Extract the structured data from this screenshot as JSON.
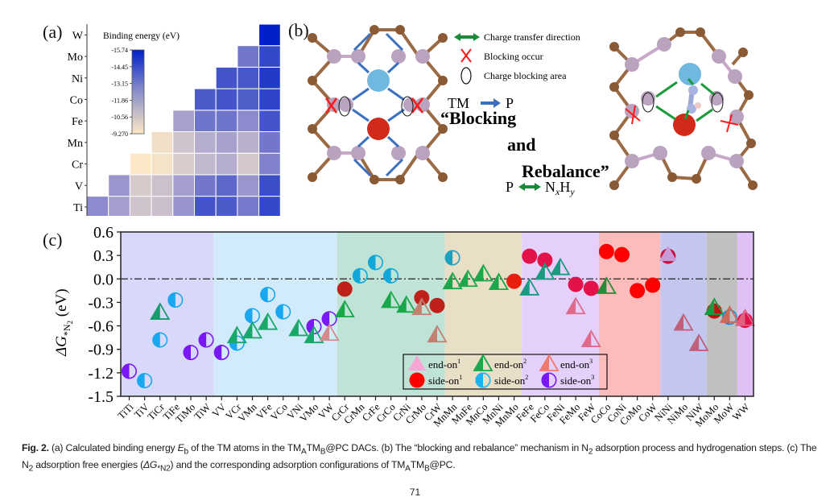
{
  "panel_labels": {
    "a": "(a)",
    "b": "(b)",
    "c": "(c)"
  },
  "chart_data": [
    {
      "type": "heatmap",
      "panel": "(a)",
      "title": "Binding energy (eV)",
      "x_labels": [
        "Ti",
        "V",
        "Cr",
        "Mn",
        "Fe",
        "Co",
        "Ni",
        "Mo",
        "W"
      ],
      "y_labels": [
        "Ti",
        "V",
        "Cr",
        "Mn",
        "Fe",
        "Co",
        "Ni",
        "Mo",
        "W"
      ],
      "colorbar": {
        "ticks": [
          "-15.74",
          "-14.45",
          "-13.15",
          "-11.86",
          "-10.56",
          "-9.270"
        ],
        "min": -15.74,
        "max": -9.27,
        "colors": [
          "#001fc8",
          "#fde9c6"
        ]
      },
      "note": "lower-triangular matrix, cell (row=y, col=x) defined when col >= row",
      "values": [
        [
          -12.9,
          -12.4,
          -11.2,
          -11.5,
          -12.7,
          -14.6,
          -14.4,
          -13.4,
          -14.9
        ],
        [
          null,
          -12.6,
          -10.9,
          -11.4,
          -12.4,
          -13.5,
          -14.0,
          -12.6,
          -14.8
        ],
        [
          null,
          null,
          -9.3,
          -9.6,
          -10.8,
          -11.7,
          -12.0,
          -11.0,
          -13.2
        ],
        [
          null,
          null,
          null,
          -9.8,
          -11.2,
          -12.0,
          -12.3,
          -11.9,
          -13.5
        ],
        [
          null,
          null,
          null,
          null,
          -12.3,
          -13.6,
          -13.6,
          -12.9,
          -14.6
        ],
        [
          null,
          null,
          null,
          null,
          null,
          -14.4,
          -14.6,
          -14.3,
          -15.0
        ],
        [
          null,
          null,
          null,
          null,
          null,
          null,
          -14.6,
          -14.5,
          -15.2
        ],
        [
          null,
          null,
          null,
          null,
          null,
          null,
          null,
          -13.5,
          -14.9
        ],
        [
          null,
          null,
          null,
          null,
          null,
          null,
          null,
          null,
          -15.74
        ]
      ]
    },
    {
      "type": "scatter",
      "panel": "(c)",
      "ylabel": "ΔG*N2 (eV)",
      "ylabel_parts": {
        "prefix": "ΔG",
        "sub": "*N",
        "sub2": "2",
        "suffix": " (eV)"
      },
      "xlabel": "",
      "ylim": [
        -1.5,
        0.6
      ],
      "yticks": [
        "0.6",
        "0.3",
        "0.0",
        "-0.3",
        "-0.6",
        "-0.9",
        "-1.2",
        "-1.5"
      ],
      "reference_line": 0.0,
      "categories": [
        "TiTi",
        "TiV",
        "TiCr",
        "TiFe",
        "TiMo",
        "TiW",
        "VV",
        "VCr",
        "VMn",
        "VFe",
        "VCo",
        "VNi",
        "VMo",
        "VW",
        "CrCr",
        "CrMn",
        "CrFe",
        "CrCo",
        "CrNi",
        "CrMo",
        "CrW",
        "MnMn",
        "MnFe",
        "MnCo",
        "MnNi",
        "MnMo",
        "FeFe",
        "FeCo",
        "FeNi",
        "FeMo",
        "FeW",
        "CoCo",
        "CoNi",
        "CoMo",
        "CoW",
        "NiNi",
        "NiMo",
        "NiW",
        "MoMo",
        "MoW",
        "WW"
      ],
      "bands": [
        {
          "group": "Ti",
          "from": 0,
          "to": 5,
          "color": "#d7d8fa"
        },
        {
          "group": "V",
          "from": 6,
          "to": 13,
          "color": "#d2ebfb"
        },
        {
          "group": "Cr",
          "from": 14,
          "to": 20,
          "color": "#c0e3d8"
        },
        {
          "group": "Mn",
          "from": 21,
          "to": 25,
          "color": "#e9dec6"
        },
        {
          "group": "Fe",
          "from": 26,
          "to": 30,
          "color": "#e5d0fb"
        },
        {
          "group": "Co",
          "from": 31,
          "to": 34,
          "color": "#fdbcbc"
        },
        {
          "group": "Ni",
          "from": 35,
          "to": 37,
          "color": "#c3c6ee"
        },
        {
          "group": "Mo",
          "from": 38,
          "to": 39,
          "color": "#c0c0c0"
        },
        {
          "group": "W",
          "from": 40,
          "to": 40,
          "color": "#dfc1f7"
        }
      ],
      "legend": {
        "position": "bottom-center",
        "entries": [
          {
            "name": "end-on",
            "sup": "1",
            "marker": "triangle-filled",
            "color": "#f7a7d6"
          },
          {
            "name": "end-on",
            "sup": "2",
            "marker": "triangle-half",
            "color": "#1aa84b"
          },
          {
            "name": "end-on",
            "sup": "3",
            "marker": "triangle-half",
            "color": "#f37a6a"
          },
          {
            "name": "side-on",
            "sup": "1",
            "marker": "circle-filled",
            "color": "#ff0000"
          },
          {
            "name": "side-on",
            "sup": "2",
            "marker": "circle-half",
            "color": "#19b3f0"
          },
          {
            "name": "side-on",
            "sup": "3",
            "marker": "circle-half",
            "color": "#7a18f5"
          }
        ]
      },
      "points": [
        {
          "x": "TiTi",
          "y": -1.18,
          "marker": "circle-half",
          "color": "#7a18f5",
          "series": "side-on3"
        },
        {
          "x": "TiV",
          "y": -1.3,
          "marker": "circle-half",
          "color": "#19a8ef",
          "series": "side-on2"
        },
        {
          "x": "TiCr",
          "y": -0.43,
          "marker": "triangle-half",
          "color": "#1a9a6e",
          "series": "end-on2"
        },
        {
          "x": "TiCr",
          "y": -0.78,
          "marker": "circle-half",
          "color": "#19a8ef",
          "series": "side-on2"
        },
        {
          "x": "TiFe",
          "y": -0.27,
          "marker": "circle-half",
          "color": "#19a8ef",
          "series": "side-on2"
        },
        {
          "x": "TiMo",
          "y": -0.94,
          "marker": "circle-half",
          "color": "#7a18f5",
          "series": "side-on3"
        },
        {
          "x": "TiW",
          "y": -0.78,
          "marker": "circle-half",
          "color": "#7a18f5",
          "series": "side-on3"
        },
        {
          "x": "VV",
          "y": -0.94,
          "marker": "circle-half",
          "color": "#7a18f5",
          "series": "side-on3"
        },
        {
          "x": "VCr",
          "y": -0.82,
          "marker": "circle-half",
          "color": "#19a8ef",
          "series": "side-on2"
        },
        {
          "x": "VCr",
          "y": -0.73,
          "marker": "triangle-half",
          "color": "#18a86a",
          "series": "end-on2"
        },
        {
          "x": "VMn",
          "y": -0.47,
          "marker": "circle-half",
          "color": "#19a8ef",
          "series": "side-on2"
        },
        {
          "x": "VMn",
          "y": -0.67,
          "marker": "triangle-half",
          "color": "#18a86a",
          "series": "end-on2"
        },
        {
          "x": "VFe",
          "y": -0.2,
          "marker": "circle-half",
          "color": "#19a8ef",
          "series": "side-on2"
        },
        {
          "x": "VFe",
          "y": -0.56,
          "marker": "triangle-half",
          "color": "#18a86a",
          "series": "end-on2"
        },
        {
          "x": "VCo",
          "y": -0.42,
          "marker": "circle-half",
          "color": "#19a8ef",
          "series": "side-on2"
        },
        {
          "x": "VNi",
          "y": -0.64,
          "marker": "triangle-half",
          "color": "#18a86a",
          "series": "end-on2"
        },
        {
          "x": "VMo",
          "y": -0.61,
          "marker": "circle-half",
          "color": "#7a18f5",
          "series": "side-on3"
        },
        {
          "x": "VMo",
          "y": -0.73,
          "marker": "triangle-half",
          "color": "#18a86a",
          "series": "end-on2"
        },
        {
          "x": "VW",
          "y": -0.51,
          "marker": "circle-half",
          "color": "#7a18f5",
          "series": "side-on3"
        },
        {
          "x": "VW",
          "y": -0.7,
          "marker": "triangle-half",
          "color": "#d58b8b",
          "series": "end-on3"
        },
        {
          "x": "CrCr",
          "y": -0.13,
          "marker": "circle-filled",
          "color": "#c0201a",
          "series": "side-on1"
        },
        {
          "x": "CrCr",
          "y": -0.4,
          "marker": "triangle-half",
          "color": "#18a84a",
          "series": "end-on2"
        },
        {
          "x": "CrMn",
          "y": 0.04,
          "marker": "circle-half",
          "color": "#10a8d8",
          "series": "side-on2"
        },
        {
          "x": "CrFe",
          "y": 0.21,
          "marker": "circle-half",
          "color": "#10a8d8",
          "series": "side-on2"
        },
        {
          "x": "CrCo",
          "y": 0.04,
          "marker": "circle-half",
          "color": "#10a8d8",
          "series": "side-on2"
        },
        {
          "x": "CrCo",
          "y": -0.28,
          "marker": "triangle-half",
          "color": "#18a84a",
          "series": "end-on2"
        },
        {
          "x": "CrNi",
          "y": -0.34,
          "marker": "triangle-half",
          "color": "#18a84a",
          "series": "end-on2"
        },
        {
          "x": "CrMo",
          "y": -0.24,
          "marker": "circle-filled",
          "color": "#c0201a",
          "series": "side-on1"
        },
        {
          "x": "CrMo",
          "y": -0.37,
          "marker": "triangle-half",
          "color": "#c4806f",
          "series": "end-on3"
        },
        {
          "x": "CrW",
          "y": -0.34,
          "marker": "circle-filled",
          "color": "#c0201a",
          "series": "side-on1"
        },
        {
          "x": "CrW",
          "y": -0.72,
          "marker": "triangle-half",
          "color": "#c4806f",
          "series": "end-on3"
        },
        {
          "x": "MnMn",
          "y": 0.27,
          "marker": "circle-half",
          "color": "#1aa2c0",
          "series": "side-on2"
        },
        {
          "x": "MnMn",
          "y": -0.04,
          "marker": "triangle-half",
          "color": "#1aa84a",
          "series": "end-on2"
        },
        {
          "x": "MnFe",
          "y": -0.01,
          "marker": "triangle-half",
          "color": "#1aa84a",
          "series": "end-on2"
        },
        {
          "x": "MnCo",
          "y": 0.06,
          "marker": "triangle-half",
          "color": "#1aa84a",
          "series": "end-on2"
        },
        {
          "x": "MnNi",
          "y": -0.05,
          "marker": "triangle-half",
          "color": "#1aa84a",
          "series": "end-on2"
        },
        {
          "x": "MnMo",
          "y": -0.03,
          "marker": "circle-filled",
          "color": "#e81f0f",
          "series": "side-on1"
        },
        {
          "x": "FeFe",
          "y": 0.29,
          "marker": "circle-filled",
          "color": "#e3134a",
          "series": "side-on1"
        },
        {
          "x": "FeFe",
          "y": -0.12,
          "marker": "triangle-half",
          "color": "#1a9a80",
          "series": "end-on2"
        },
        {
          "x": "FeCo",
          "y": 0.24,
          "marker": "circle-filled",
          "color": "#e3134a",
          "series": "side-on1"
        },
        {
          "x": "FeCo",
          "y": 0.08,
          "marker": "triangle-half",
          "color": "#1a9a80",
          "series": "end-on2"
        },
        {
          "x": "FeNi",
          "y": 0.14,
          "marker": "triangle-half",
          "color": "#1a9a80",
          "series": "end-on2"
        },
        {
          "x": "FeMo",
          "y": -0.07,
          "marker": "circle-filled",
          "color": "#e3134a",
          "series": "side-on1"
        },
        {
          "x": "FeMo",
          "y": -0.36,
          "marker": "triangle-half",
          "color": "#e06a8c",
          "series": "end-on3"
        },
        {
          "x": "FeW",
          "y": -0.12,
          "marker": "circle-filled",
          "color": "#e3134a",
          "series": "side-on1"
        },
        {
          "x": "FeW",
          "y": -0.78,
          "marker": "triangle-half",
          "color": "#e06a8c",
          "series": "end-on3"
        },
        {
          "x": "CoCo",
          "y": 0.35,
          "marker": "circle-filled",
          "color": "#ff0000",
          "series": "side-on1"
        },
        {
          "x": "CoCo",
          "y": -0.1,
          "marker": "triangle-half",
          "color": "#2a8a3a",
          "series": "end-on2"
        },
        {
          "x": "CoNi",
          "y": 0.31,
          "marker": "circle-filled",
          "color": "#ff0000",
          "series": "side-on1"
        },
        {
          "x": "CoMo",
          "y": -0.15,
          "marker": "circle-filled",
          "color": "#ff0000",
          "series": "side-on1"
        },
        {
          "x": "CoW",
          "y": -0.08,
          "marker": "circle-filled",
          "color": "#ff0000",
          "series": "side-on1"
        },
        {
          "x": "NiNi",
          "y": 0.29,
          "marker": "circle-filled",
          "color": "#c8103a",
          "series": "side-on1"
        },
        {
          "x": "NiNi",
          "y": 0.31,
          "marker": "triangle-filled",
          "color": "#c89ad8",
          "series": "end-on1"
        },
        {
          "x": "NiMo",
          "y": -0.57,
          "marker": "triangle-half",
          "color": "#c0607a",
          "series": "end-on3"
        },
        {
          "x": "NiW",
          "y": -0.83,
          "marker": "triangle-half",
          "color": "#c0607a",
          "series": "end-on3"
        },
        {
          "x": "MoMo",
          "y": -0.41,
          "marker": "circle-filled",
          "color": "#c41010",
          "series": "side-on1"
        },
        {
          "x": "MoMo",
          "y": -0.37,
          "marker": "triangle-half",
          "color": "#1a9a40",
          "series": "end-on2"
        },
        {
          "x": "MoW",
          "y": -0.49,
          "marker": "circle-half",
          "color": "#1a90d0",
          "series": "side-on2"
        },
        {
          "x": "MoW",
          "y": -0.47,
          "marker": "triangle-half",
          "color": "#cc6a5a",
          "series": "end-on3"
        },
        {
          "x": "WW",
          "y": -0.53,
          "marker": "circle-filled",
          "color": "#e0104a",
          "series": "side-on1"
        },
        {
          "x": "WW",
          "y": -0.51,
          "marker": "triangle-half",
          "color": "#e06080",
          "series": "end-on3"
        }
      ]
    }
  ],
  "diagram_b": {
    "legend": [
      {
        "icon": "double-arrow-green",
        "label": "Charge transfer direction"
      },
      {
        "icon": "red-x",
        "label": "Blocking occur"
      },
      {
        "icon": "ellipse",
        "label": "Charge blocking area"
      }
    ],
    "tm_to_p": {
      "left": "TM",
      "right": "P"
    },
    "title_line1": "“Blocking",
    "title_line2": "and",
    "title_line3": "Rebalance”",
    "p_to_nxhy": {
      "left": "P",
      "right_main": "N",
      "right_x": "x",
      "right_h": "H",
      "right_y": "y"
    }
  },
  "caption": {
    "fig": "Fig. 2.",
    "a": " (a) Calculated binding energy ",
    "eb": "E",
    "eb_sub": "b",
    "a2": " of the TM atoms in the TM",
    "sub_A": "A",
    "tm2": "TM",
    "sub_B": "B",
    "a3": "@PC DACs. (b) The “blocking and rebalance” mechanism in N",
    "n2sub": "2",
    "b2": " adsorption process and hydrogenation steps. (c) The N",
    "n2sub_b": "2",
    "c1": " adsorption free energies (",
    "dg": "ΔG",
    "dg_sub": "*N2",
    "c2": ") and the corresponding adsorption configurations of TM",
    "sub_A2": "A",
    "tm3": "TM",
    "sub_B2": "B",
    "c3": "@PC."
  },
  "page_number": "71"
}
